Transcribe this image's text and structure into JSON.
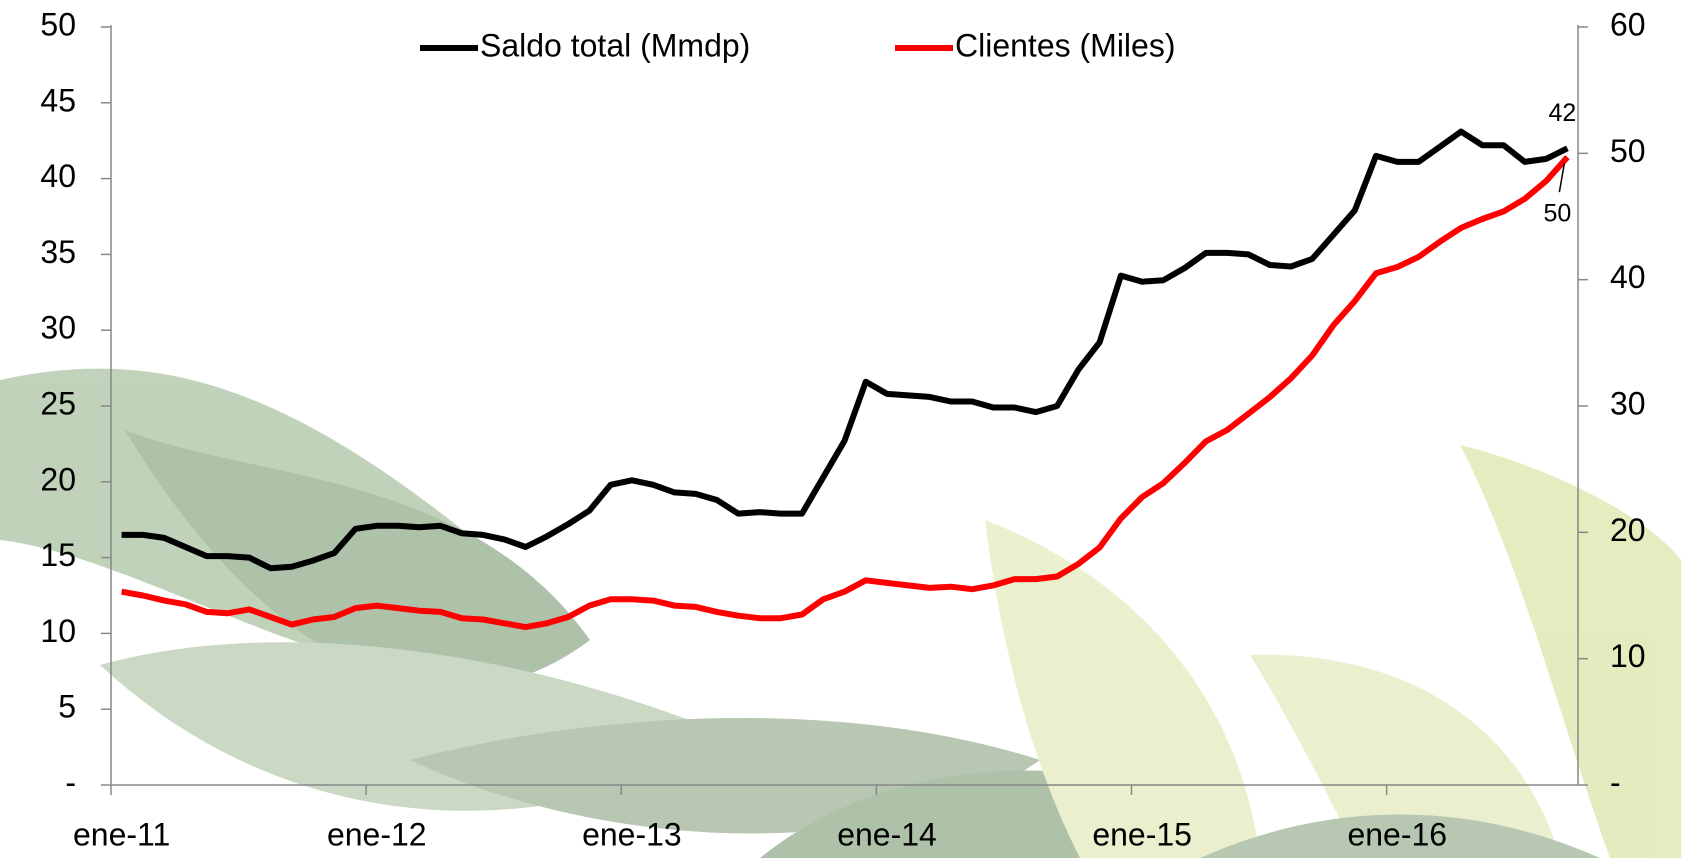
{
  "chart_data": {
    "type": "line",
    "categories": [
      "ene-11",
      null,
      null,
      null,
      null,
      null,
      null,
      null,
      null,
      null,
      null,
      null,
      "ene-12",
      null,
      null,
      null,
      null,
      null,
      null,
      null,
      null,
      null,
      null,
      null,
      "ene-13",
      null,
      null,
      null,
      null,
      null,
      null,
      null,
      null,
      null,
      null,
      null,
      "ene-14",
      null,
      null,
      null,
      null,
      null,
      null,
      null,
      null,
      null,
      null,
      null,
      "ene-15",
      null,
      null,
      null,
      null,
      null,
      null,
      null,
      null,
      null,
      null,
      null,
      "ene-16",
      null,
      null,
      null,
      null,
      null,
      null,
      null,
      null
    ],
    "series": [
      {
        "name": "Saldo total (Mmdp)",
        "color": "#000000",
        "axis": "y",
        "values": [
          16.5,
          16.5,
          16.3,
          15.7,
          15.1,
          15.1,
          15.0,
          14.3,
          14.4,
          14.8,
          15.3,
          16.9,
          17.1,
          17.1,
          17.0,
          17.1,
          16.6,
          16.5,
          16.2,
          15.7,
          16.4,
          17.2,
          18.1,
          19.8,
          20.1,
          19.8,
          19.3,
          19.2,
          18.8,
          17.9,
          18.0,
          17.9,
          17.9,
          20.3,
          22.7,
          26.6,
          25.8,
          25.7,
          25.6,
          25.3,
          25.3,
          24.9,
          24.9,
          24.6,
          25.0,
          27.4,
          29.2,
          33.6,
          33.2,
          33.3,
          34.1,
          35.1,
          35.1,
          35.0,
          34.3,
          34.2,
          34.7,
          36.3,
          37.9,
          41.5,
          41.1,
          41.1,
          42.1,
          43.1,
          42.2,
          42.2,
          41.1,
          41.3,
          42.0
        ],
        "value_labels": [
          null,
          null,
          null,
          null,
          null,
          null,
          null,
          null,
          null,
          null,
          null,
          null,
          null,
          null,
          null,
          null,
          null,
          null,
          null,
          null,
          null,
          null,
          null,
          null,
          null,
          null,
          null,
          null,
          null,
          null,
          null,
          null,
          null,
          null,
          null,
          null,
          null,
          null,
          null,
          null,
          null,
          null,
          null,
          null,
          null,
          null,
          null,
          null,
          null,
          null,
          null,
          null,
          null,
          null,
          null,
          null,
          null,
          null,
          null,
          null,
          null,
          null,
          null,
          null,
          null,
          null,
          null,
          null,
          "42"
        ]
      },
      {
        "name": "Clientes (Miles)",
        "color": "#ff0000",
        "axis": "y2",
        "values": [
          15.3,
          15.0,
          14.6,
          14.3,
          13.7,
          13.6,
          13.9,
          13.3,
          12.7,
          13.1,
          13.3,
          14.0,
          14.2,
          14.0,
          13.8,
          13.7,
          13.2,
          13.1,
          12.8,
          12.5,
          12.8,
          13.3,
          14.2,
          14.7,
          14.7,
          14.6,
          14.2,
          14.1,
          13.7,
          13.4,
          13.2,
          13.2,
          13.5,
          14.7,
          15.3,
          16.2,
          16.0,
          15.8,
          15.6,
          15.7,
          15.5,
          15.8,
          16.3,
          16.3,
          16.5,
          17.5,
          18.8,
          21.1,
          22.8,
          23.9,
          25.5,
          27.2,
          28.1,
          29.4,
          30.7,
          32.2,
          34.0,
          36.4,
          38.3,
          40.5,
          41.0,
          41.8,
          43.0,
          44.1,
          44.8,
          45.4,
          46.4,
          47.8,
          49.7
        ],
        "value_labels": [
          null,
          null,
          null,
          null,
          null,
          null,
          null,
          null,
          null,
          null,
          null,
          null,
          null,
          null,
          null,
          null,
          null,
          null,
          null,
          null,
          null,
          null,
          null,
          null,
          null,
          null,
          null,
          null,
          null,
          null,
          null,
          null,
          null,
          null,
          null,
          null,
          null,
          null,
          null,
          null,
          null,
          null,
          null,
          null,
          null,
          null,
          null,
          null,
          null,
          null,
          null,
          null,
          null,
          null,
          null,
          null,
          null,
          null,
          null,
          null,
          null,
          null,
          null,
          null,
          null,
          null,
          null,
          null,
          "50"
        ]
      }
    ],
    "ylim": [
      0,
      50
    ],
    "yticks": [
      {
        "value": 0,
        "label": "-"
      },
      5,
      10,
      15,
      20,
      25,
      30,
      35,
      40,
      45,
      50
    ],
    "y2lim": [
      0,
      60
    ],
    "y2ticks": [
      {
        "value": 0,
        "label": "-"
      },
      10,
      20,
      30,
      40,
      50,
      60
    ],
    "legend": "top"
  }
}
